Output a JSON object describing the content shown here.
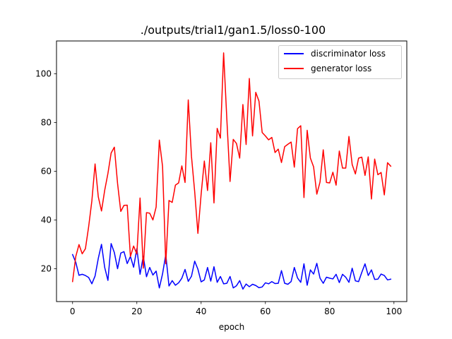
{
  "chart_data": {
    "type": "line",
    "title": "./outputs/trial1/gan1.5/loss0-100",
    "xlabel": "epoch",
    "ylabel": "",
    "xlim": [
      -5,
      104
    ],
    "ylim": [
      6.5,
      113.5
    ],
    "xticks": [
      0,
      20,
      40,
      60,
      80,
      100
    ],
    "yticks": [
      20,
      40,
      60,
      80,
      100
    ],
    "grid": false,
    "legend_position": "top-right",
    "x": [
      0,
      1,
      2,
      3,
      4,
      5,
      6,
      7,
      8,
      9,
      10,
      11,
      12,
      13,
      14,
      15,
      16,
      17,
      18,
      19,
      20,
      21,
      22,
      23,
      24,
      25,
      26,
      27,
      28,
      29,
      30,
      31,
      32,
      33,
      34,
      35,
      36,
      37,
      38,
      39,
      40,
      41,
      42,
      43,
      44,
      45,
      46,
      47,
      48,
      49,
      50,
      51,
      52,
      53,
      54,
      55,
      56,
      57,
      58,
      59,
      60,
      61,
      62,
      63,
      64,
      65,
      66,
      67,
      68,
      69,
      70,
      71,
      72,
      73,
      74,
      75,
      76,
      77,
      78,
      79,
      80,
      81,
      82,
      83,
      84,
      85,
      86,
      87,
      88,
      89,
      90,
      91,
      92,
      93,
      94,
      95,
      96,
      97,
      98,
      99
    ],
    "series": [
      {
        "name": "discriminator loss",
        "color": "#0000ff",
        "values": [
          25.8,
          22.6,
          17.3,
          17.7,
          17.2,
          16.4,
          13.8,
          17.0,
          24.2,
          30.0,
          20.5,
          15.2,
          30.3,
          26.6,
          20.0,
          26.4,
          27.0,
          22.1,
          25.0,
          20.6,
          28.2,
          17.7,
          25.1,
          16.7,
          20.5,
          17.4,
          19.0,
          12.1,
          17.9,
          25.8,
          12.9,
          15.1,
          13.2,
          14.2,
          16.1,
          19.7,
          14.8,
          16.9,
          23.1,
          19.8,
          14.6,
          15.4,
          20.5,
          14.9,
          20.8,
          14.4,
          16.8,
          13.8,
          14.0,
          16.8,
          12.1,
          13.0,
          15.1,
          11.6,
          13.7,
          12.6,
          13.6,
          13.1,
          12.2,
          12.5,
          14.2,
          13.8,
          14.7,
          13.9,
          14.0,
          19.2,
          14.0,
          13.6,
          14.7,
          20.5,
          16.2,
          14.4,
          22.0,
          13.2,
          19.5,
          17.8,
          22.2,
          16.1,
          14.0,
          16.5,
          16.1,
          15.8,
          17.7,
          14.3,
          17.7,
          16.5,
          14.4,
          20.2,
          15.0,
          14.7,
          18.5,
          22.0,
          17.2,
          19.5,
          15.6,
          15.7,
          17.8,
          17.2,
          15.4,
          15.7
        ]
      },
      {
        "name": "generator loss",
        "color": "#ff0000",
        "values": [
          14.7,
          25.0,
          29.9,
          26.1,
          28.2,
          37.2,
          47.8,
          63.0,
          49.5,
          43.7,
          52.2,
          59.1,
          67.5,
          69.9,
          55.0,
          43.5,
          46.0,
          46.1,
          25.0,
          29.3,
          26.0,
          49.0,
          20.2,
          43.0,
          42.8,
          40.0,
          45.3,
          72.8,
          62.0,
          22.0,
          48.0,
          47.2,
          54.3,
          55.2,
          62.2,
          55.4,
          89.3,
          66.1,
          51.6,
          34.5,
          50.5,
          64.2,
          52.1,
          71.7,
          47.0,
          77.6,
          73.6,
          108.6,
          81.5,
          55.8,
          73.1,
          71.4,
          65.4,
          87.4,
          71.0,
          98.1,
          74.5,
          92.4,
          88.8,
          75.9,
          74.5,
          72.9,
          73.9,
          67.7,
          69.1,
          63.6,
          70.1,
          71.1,
          72.0,
          61.7,
          77.5,
          78.7,
          49.2,
          76.8,
          65.4,
          61.8,
          50.6,
          55.6,
          68.8,
          55.4,
          55.2,
          59.6,
          54.3,
          68.3,
          61.3,
          61.3,
          74.3,
          62.8,
          58.9,
          65.4,
          65.8,
          58.3,
          65.9,
          48.6,
          65.0,
          58.6,
          59.5,
          50.3,
          63.5,
          62.1
        ]
      }
    ]
  }
}
